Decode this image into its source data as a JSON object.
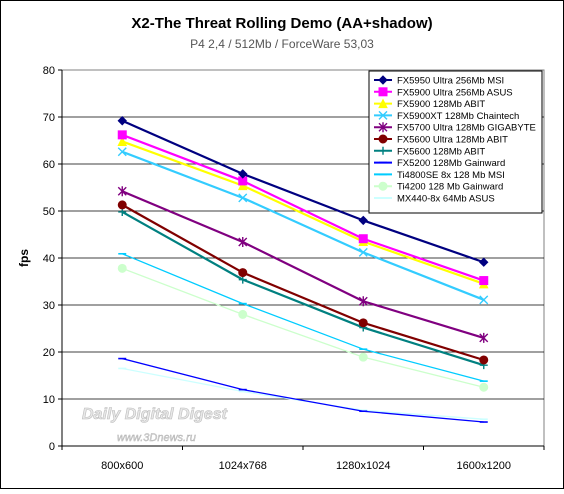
{
  "chart_data": {
    "type": "line",
    "title": "X2-The Threat Rolling Demo (AA+shadow)",
    "subtitle": "P4 2,4 / 512Mb / ForceWare 53,03",
    "ylabel": "fps",
    "xlabel": "",
    "ylim": [
      0,
      80
    ],
    "yticks": [
      0,
      10,
      20,
      30,
      40,
      50,
      60,
      70,
      80
    ],
    "categories": [
      "800x600",
      "1024x768",
      "1280x1024",
      "1600x1200"
    ],
    "grid": true,
    "legend_position": "top-right",
    "series": [
      {
        "name": "FX5950 Ultra 256Mb MSI",
        "color": "#000080",
        "marker": "diamond",
        "values": [
          69.2,
          57.9,
          48.0,
          39.1
        ]
      },
      {
        "name": "FX5900 Ultra 256Mb ASUS",
        "color": "#ff00ff",
        "marker": "square",
        "values": [
          66.2,
          56.4,
          44.1,
          35.2
        ]
      },
      {
        "name": "FX5900 128Mb ABIT",
        "color": "#ffff00",
        "marker": "triangle",
        "values": [
          64.8,
          55.4,
          43.5,
          34.5
        ]
      },
      {
        "name": "FX5900XT 128Mb Chaintech",
        "color": "#33ccff",
        "marker": "x",
        "values": [
          62.6,
          52.8,
          41.2,
          31.1
        ]
      },
      {
        "name": "FX5700 Ultra 128Mb GIGABYTE",
        "color": "#800080",
        "marker": "star",
        "values": [
          54.2,
          43.4,
          30.8,
          23.0
        ]
      },
      {
        "name": "FX5600 Ultra 128Mb ABIT",
        "color": "#800000",
        "marker": "circle",
        "values": [
          51.3,
          36.9,
          26.2,
          18.3
        ]
      },
      {
        "name": "FX5600 128Mb ABIT",
        "color": "#008080",
        "marker": "plus",
        "values": [
          49.8,
          35.4,
          25.2,
          17.2
        ]
      },
      {
        "name": "FX5200 128Mb Gainward",
        "color": "#0000ff",
        "marker": "dash",
        "values": [
          18.6,
          12.0,
          7.4,
          5.1
        ]
      },
      {
        "name": "Ti4800SE 8x 128 Mb MSI",
        "color": "#00ccff",
        "marker": "dash",
        "values": [
          40.9,
          30.3,
          20.6,
          13.8
        ]
      },
      {
        "name": "Ti4200 128 Mb Gainward",
        "color": "#ccffcc",
        "marker": "circle",
        "values": [
          37.8,
          28.0,
          18.9,
          12.5
        ]
      },
      {
        "name": "MX440-8x 64Mb ASUS",
        "color": "#ccffff",
        "marker": "dash",
        "values": [
          16.5,
          11.6,
          7.6,
          5.7
        ]
      }
    ]
  },
  "watermark": {
    "line1": "Daily Digital Digest",
    "line2": "www.3Dnews.ru"
  }
}
